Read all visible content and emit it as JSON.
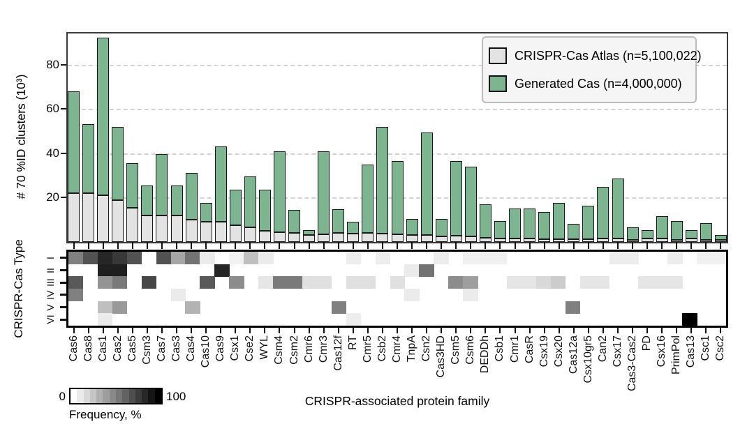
{
  "figure": {
    "bar_chart": {
      "ylabel": "# 70 %ID clusters (10³)",
      "legend": {
        "items": [
          {
            "label": "CRISPR-Cas Atlas (n=5,100,022)",
            "color": "#e3e3e3"
          },
          {
            "label": "Generated Cas (n=4,000,000)",
            "color": "#7db590"
          }
        ]
      }
    },
    "heatmap": {
      "ylabel": "CRISPR-Cas Type"
    },
    "xlabel": "CRISPR-associated protein family",
    "colorbar": {
      "min_label": "0",
      "max_label": "100",
      "title": "Frequency, %"
    }
  },
  "chart_data": {
    "type": [
      "bar",
      "heatmap"
    ],
    "categories": [
      "Cas6",
      "Cas8",
      "Cas1",
      "Cas2",
      "Cas5",
      "Csm3",
      "Cas7",
      "Cas3",
      "Cas4",
      "Cas10",
      "Cas9",
      "Csx1",
      "Cse2",
      "WYL",
      "Csm4",
      "Csm2",
      "Cmr6",
      "Cmr3",
      "Cas12f",
      "RT",
      "Cmr5",
      "Csb2",
      "Cmr4",
      "TnpA",
      "Csn2",
      "Cas3HD",
      "Csm5",
      "Csm6",
      "DEDDh",
      "Csb1",
      "Cmr1",
      "CasR",
      "Csx19",
      "Csx20",
      "Cas12a",
      "Csx10gr5",
      "Can2",
      "Csx17",
      "Cas3-Cas2",
      "PD",
      "Csx16",
      "PrimPol",
      "Cas13",
      "Csc1",
      "Csc2"
    ],
    "bar": {
      "stacked": true,
      "ylabel": "# 70 %ID clusters (10³)",
      "unit": "10^3 clusters",
      "ylim": [
        0,
        95
      ],
      "yticks": [
        20,
        40,
        60,
        80
      ],
      "grid": "dashed-horizontal",
      "series": [
        {
          "name": "CRISPR-Cas Atlas (n=5,100,022)",
          "color": "#e3e3e3",
          "values": [
            22,
            22,
            21,
            19,
            15.5,
            12,
            12,
            12,
            10,
            9,
            9,
            7.5,
            6.5,
            5,
            4.5,
            4,
            3,
            3.5,
            4,
            3.8,
            4,
            3.8,
            3.5,
            3,
            3,
            2.5,
            2.8,
            2.5,
            2,
            1.6,
            1.5,
            1.5,
            1.4,
            1.3,
            1.2,
            1.2,
            1.5,
            1.5,
            1,
            1.5,
            1.5,
            1,
            1.5,
            1,
            0.8
          ]
        },
        {
          "name": "Generated Cas (n=4,000,000)",
          "color": "#7db590",
          "values": [
            46,
            31,
            71,
            33,
            20,
            13.5,
            27.5,
            13.5,
            21,
            8.5,
            34,
            16,
            23,
            18.5,
            36.5,
            10.5,
            2.5,
            37.5,
            10.8,
            5.2,
            31,
            48.2,
            33,
            7.5,
            46.5,
            8,
            33.7,
            31.5,
            15,
            7.9,
            13.5,
            13.5,
            12.1,
            16.2,
            7,
            15.3,
            23.5,
            27,
            5.5,
            3.8,
            10,
            8.5,
            4,
            7.5,
            2.2
          ]
        }
      ]
    },
    "heatmap": {
      "ylabel": "CRISPR-Cas Type",
      "rows": [
        "I",
        "II",
        "III",
        "IV",
        "V",
        "VI"
      ],
      "scale": {
        "min": 0,
        "max": 100,
        "label": "Frequency, %"
      },
      "values": [
        [
          50,
          68,
          85,
          78,
          68,
          0,
          68,
          35,
          55,
          8,
          0,
          5,
          25,
          8,
          0,
          0,
          0,
          0,
          0,
          7,
          0,
          7,
          0,
          0,
          0,
          7,
          0,
          6,
          6,
          6,
          0,
          0,
          0,
          0,
          0,
          0,
          0,
          7,
          7,
          0,
          0,
          7,
          0,
          6,
          6
        ],
        [
          0,
          0,
          88,
          88,
          0,
          0,
          0,
          0,
          0,
          0,
          85,
          0,
          0,
          0,
          0,
          0,
          0,
          0,
          0,
          0,
          0,
          0,
          0,
          8,
          55,
          0,
          0,
          0,
          0,
          0,
          0,
          0,
          0,
          0,
          0,
          0,
          0,
          0,
          0,
          0,
          0,
          0,
          0,
          0,
          0
        ],
        [
          65,
          0,
          42,
          52,
          0,
          72,
          0,
          0,
          0,
          65,
          0,
          45,
          0,
          10,
          52,
          52,
          12,
          12,
          0,
          12,
          12,
          0,
          12,
          0,
          0,
          0,
          45,
          38,
          0,
          0,
          10,
          10,
          15,
          20,
          0,
          10,
          10,
          0,
          0,
          10,
          10,
          10,
          0,
          0,
          0
        ],
        [
          50,
          0,
          0,
          0,
          0,
          0,
          0,
          8,
          0,
          0,
          0,
          0,
          0,
          0,
          0,
          0,
          0,
          0,
          0,
          0,
          0,
          0,
          0,
          8,
          0,
          0,
          0,
          8,
          0,
          0,
          0,
          0,
          0,
          0,
          0,
          0,
          0,
          0,
          0,
          0,
          0,
          0,
          0,
          0,
          0
        ],
        [
          0,
          0,
          25,
          40,
          0,
          0,
          0,
          0,
          30,
          0,
          0,
          0,
          0,
          0,
          0,
          0,
          0,
          0,
          50,
          0,
          0,
          0,
          0,
          0,
          0,
          0,
          0,
          0,
          0,
          0,
          0,
          0,
          0,
          0,
          50,
          0,
          0,
          0,
          0,
          0,
          0,
          0,
          0,
          0,
          0
        ],
        [
          0,
          0,
          8,
          0,
          0,
          0,
          0,
          0,
          0,
          0,
          0,
          0,
          0,
          0,
          0,
          0,
          0,
          0,
          0,
          7,
          0,
          0,
          0,
          0,
          0,
          0,
          0,
          0,
          0,
          0,
          0,
          0,
          0,
          0,
          0,
          0,
          0,
          0,
          0,
          0,
          0,
          0,
          100,
          0,
          0
        ]
      ]
    }
  }
}
